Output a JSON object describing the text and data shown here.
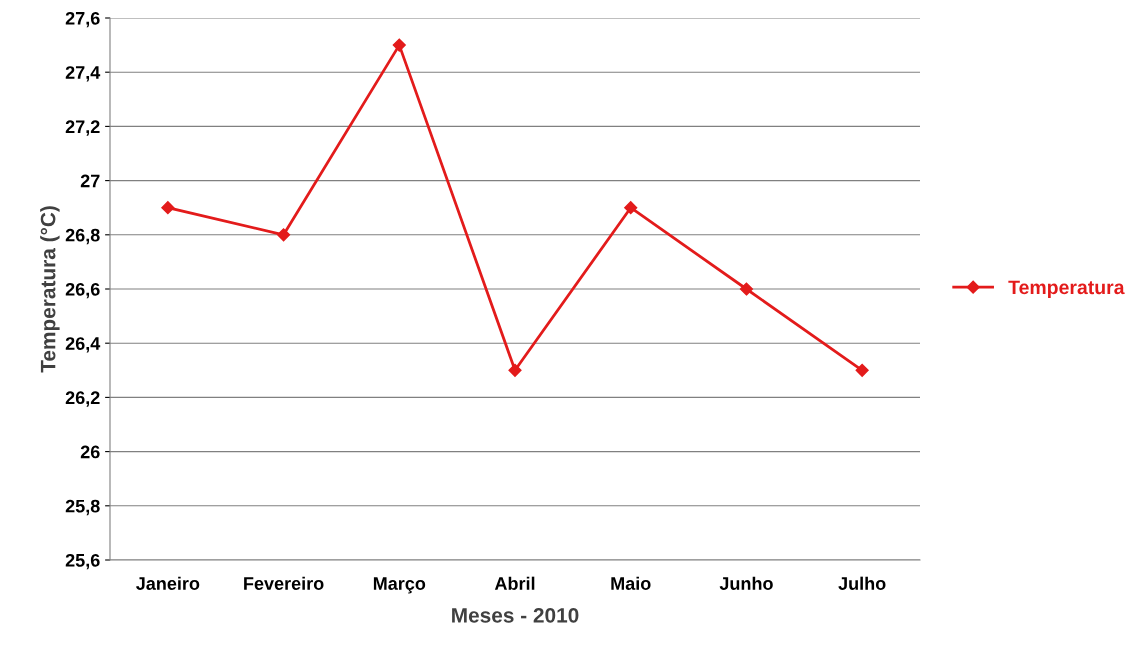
{
  "chart_data": {
    "type": "line",
    "xlabel": "Meses - 2010",
    "ylabel": "Temperatura (°C)",
    "categories": [
      "Janeiro",
      "Fevereiro",
      "Março",
      "Abril",
      "Maio",
      "Junho",
      "Julho"
    ],
    "series": [
      {
        "name": "Temperatura",
        "color": "#e31b1b",
        "values": [
          26.9,
          26.8,
          27.5,
          26.3,
          26.9,
          26.6,
          26.3
        ]
      }
    ],
    "ylim": [
      25.6,
      27.6
    ],
    "yticks": [
      {
        "value": 25.6,
        "label": "25,6"
      },
      {
        "value": 25.8,
        "label": "25,8"
      },
      26,
      {
        "value": 26.2,
        "label": "26,2"
      },
      {
        "value": 26.4,
        "label": "26,4"
      },
      {
        "value": 26.6,
        "label": "26,6"
      },
      {
        "value": 26.8,
        "label": "26,8"
      },
      27,
      {
        "value": 27.2,
        "label": "27,2"
      },
      {
        "value": 27.4,
        "label": "27,4"
      },
      {
        "value": 27.6,
        "label": "27,6"
      }
    ],
    "grid": "y",
    "legend": "right",
    "marker": "diamond",
    "line_style": "solid"
  }
}
